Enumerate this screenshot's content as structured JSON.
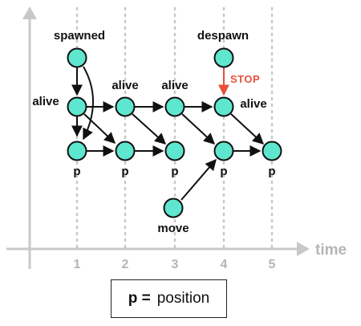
{
  "axis": {
    "label": "time",
    "ticks": [
      "1",
      "2",
      "3",
      "4",
      "5"
    ]
  },
  "labels": {
    "spawned": "spawned",
    "despawn": "despawn",
    "stop": "STOP",
    "move": "move",
    "alive_left": "alive",
    "alive_t2": "alive",
    "alive_t3": "alive",
    "alive_t4": "alive",
    "p1": "p",
    "p2": "p",
    "p3": "p",
    "p4": "p",
    "p5": "p"
  },
  "legend": {
    "key": "p =",
    "value": "position"
  },
  "colors": {
    "node": "#5ee6cf",
    "stop": "#e8503a",
    "axis": "#c8c8c8",
    "grid": "#c8c8c8"
  }
}
